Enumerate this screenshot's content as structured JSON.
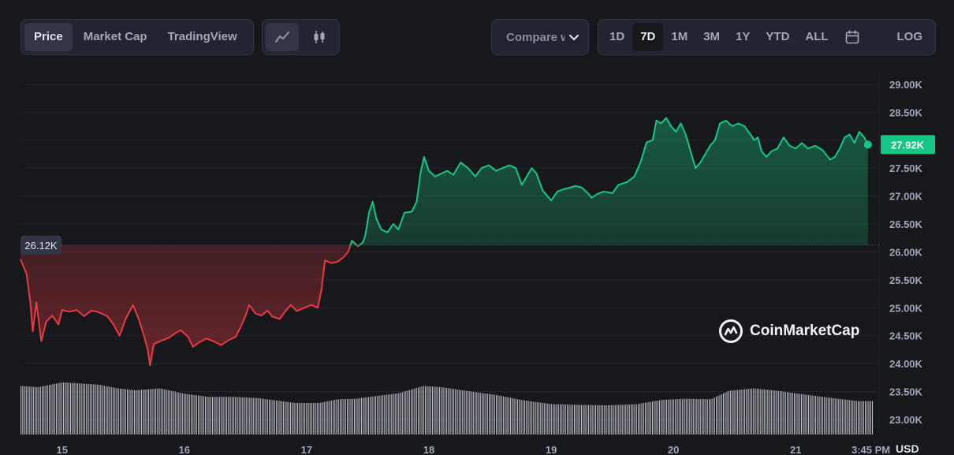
{
  "tabs": [
    "Price",
    "Market Cap",
    "TradingView"
  ],
  "active_tab": "Price",
  "chart_types": [
    "line-chart-icon",
    "candlestick-icon"
  ],
  "compare_label": "Compare with",
  "ranges": [
    "1D",
    "7D",
    "1M",
    "3M",
    "1Y",
    "YTD",
    "ALL"
  ],
  "active_range": "7D",
  "log_label": "LOG",
  "watermark": "CoinMarketCap",
  "colors": {
    "up": "#16c784",
    "down": "#ea3943",
    "bg": "#17181b",
    "grid": "#222531",
    "text": "#a1a7bb"
  },
  "chart_data": {
    "type": "area",
    "title": "",
    "currency": "USD",
    "baseline": 26120,
    "baseline_label": "26.12K",
    "current": 27920,
    "current_label": "27.92K",
    "ylim": [
      22760,
      29210
    ],
    "y_ticks": [
      29000,
      28500,
      28000,
      27500,
      27000,
      26500,
      26000,
      25500,
      25000,
      24500,
      24000,
      23500,
      23000
    ],
    "y_tick_labels": [
      "29.00K",
      "28.50K",
      "28.00K",
      "27.50K",
      "27.00K",
      "26.50K",
      "26.00K",
      "25.50K",
      "25.00K",
      "24.50K",
      "24.00K",
      "23.50K",
      "23.00K"
    ],
    "x_ticks": [
      15,
      16,
      17,
      18,
      19,
      20,
      21
    ],
    "x_tick_labels": [
      "15",
      "16",
      "17",
      "18",
      "19",
      "20",
      "21"
    ],
    "x_end_label": "3:45 PM",
    "xlim": [
      14.66,
      21.63
    ],
    "points": [
      [
        14.66,
        25.87
      ],
      [
        14.71,
        25.6
      ],
      [
        14.74,
        25.1
      ],
      [
        14.76,
        24.58
      ],
      [
        14.79,
        25.1
      ],
      [
        14.83,
        24.4
      ],
      [
        14.87,
        24.75
      ],
      [
        14.92,
        24.86
      ],
      [
        14.97,
        24.7
      ],
      [
        15.0,
        24.96
      ],
      [
        15.06,
        24.93
      ],
      [
        15.12,
        24.96
      ],
      [
        15.18,
        24.85
      ],
      [
        15.24,
        24.95
      ],
      [
        15.3,
        24.92
      ],
      [
        15.37,
        24.85
      ],
      [
        15.42,
        24.7
      ],
      [
        15.47,
        24.5
      ],
      [
        15.52,
        24.8
      ],
      [
        15.58,
        25.05
      ],
      [
        15.63,
        24.78
      ],
      [
        15.67,
        24.5
      ],
      [
        15.7,
        24.25
      ],
      [
        15.72,
        23.97
      ],
      [
        15.75,
        24.35
      ],
      [
        15.8,
        24.4
      ],
      [
        15.87,
        24.46
      ],
      [
        15.93,
        24.55
      ],
      [
        15.97,
        24.6
      ],
      [
        16.03,
        24.48
      ],
      [
        16.07,
        24.3
      ],
      [
        16.12,
        24.38
      ],
      [
        16.18,
        24.45
      ],
      [
        16.24,
        24.4
      ],
      [
        16.3,
        24.33
      ],
      [
        16.36,
        24.42
      ],
      [
        16.42,
        24.48
      ],
      [
        16.47,
        24.7
      ],
      [
        16.5,
        24.85
      ],
      [
        16.53,
        25.05
      ],
      [
        16.58,
        24.9
      ],
      [
        16.63,
        24.86
      ],
      [
        16.68,
        24.95
      ],
      [
        16.72,
        24.84
      ],
      [
        16.78,
        24.8
      ],
      [
        16.83,
        24.95
      ],
      [
        16.87,
        25.05
      ],
      [
        16.92,
        24.94
      ],
      [
        16.98,
        25.0
      ],
      [
        17.04,
        25.05
      ],
      [
        17.09,
        25.0
      ],
      [
        17.12,
        25.3
      ],
      [
        17.15,
        25.85
      ],
      [
        17.2,
        25.8
      ],
      [
        17.25,
        25.82
      ],
      [
        17.3,
        25.9
      ],
      [
        17.34,
        26.0
      ],
      [
        17.37,
        26.2
      ],
      [
        17.42,
        26.1
      ],
      [
        17.46,
        26.17
      ],
      [
        17.48,
        26.3
      ],
      [
        17.51,
        26.7
      ],
      [
        17.54,
        26.9
      ],
      [
        17.57,
        26.6
      ],
      [
        17.61,
        26.4
      ],
      [
        17.66,
        26.35
      ],
      [
        17.71,
        26.5
      ],
      [
        17.75,
        26.4
      ],
      [
        17.8,
        26.7
      ],
      [
        17.86,
        26.72
      ],
      [
        17.9,
        26.9
      ],
      [
        17.93,
        27.4
      ],
      [
        17.96,
        27.7
      ],
      [
        18.0,
        27.45
      ],
      [
        18.05,
        27.35
      ],
      [
        18.1,
        27.4
      ],
      [
        18.15,
        27.45
      ],
      [
        18.2,
        27.38
      ],
      [
        18.26,
        27.6
      ],
      [
        18.32,
        27.5
      ],
      [
        18.38,
        27.35
      ],
      [
        18.43,
        27.5
      ],
      [
        18.49,
        27.55
      ],
      [
        18.55,
        27.45
      ],
      [
        18.6,
        27.5
      ],
      [
        18.66,
        27.55
      ],
      [
        18.71,
        27.5
      ],
      [
        18.76,
        27.2
      ],
      [
        18.8,
        27.35
      ],
      [
        18.84,
        27.5
      ],
      [
        18.88,
        27.4
      ],
      [
        18.93,
        27.1
      ],
      [
        19.0,
        26.92
      ],
      [
        19.05,
        27.08
      ],
      [
        19.1,
        27.12
      ],
      [
        19.15,
        27.15
      ],
      [
        19.2,
        27.18
      ],
      [
        19.25,
        27.15
      ],
      [
        19.3,
        27.05
      ],
      [
        19.33,
        26.97
      ],
      [
        19.38,
        27.04
      ],
      [
        19.43,
        27.08
      ],
      [
        19.5,
        27.05
      ],
      [
        19.55,
        27.2
      ],
      [
        19.62,
        27.25
      ],
      [
        19.68,
        27.35
      ],
      [
        19.71,
        27.5
      ],
      [
        19.73,
        27.6
      ],
      [
        19.78,
        27.96
      ],
      [
        19.83,
        28.0
      ],
      [
        19.86,
        28.35
      ],
      [
        19.9,
        28.3
      ],
      [
        19.94,
        28.4
      ],
      [
        19.98,
        28.25
      ],
      [
        20.02,
        28.15
      ],
      [
        20.06,
        28.3
      ],
      [
        20.1,
        28.1
      ],
      [
        20.14,
        27.8
      ],
      [
        20.18,
        27.5
      ],
      [
        20.22,
        27.6
      ],
      [
        20.26,
        27.75
      ],
      [
        20.3,
        27.9
      ],
      [
        20.34,
        28.0
      ],
      [
        20.38,
        28.3
      ],
      [
        20.43,
        28.35
      ],
      [
        20.48,
        28.25
      ],
      [
        20.53,
        28.3
      ],
      [
        20.58,
        28.25
      ],
      [
        20.63,
        28.1
      ],
      [
        20.66,
        28.0
      ],
      [
        20.69,
        28.05
      ],
      [
        20.72,
        27.8
      ],
      [
        20.76,
        27.7
      ],
      [
        20.8,
        27.8
      ],
      [
        20.85,
        27.85
      ],
      [
        20.9,
        28.05
      ],
      [
        20.95,
        27.9
      ],
      [
        21.0,
        27.85
      ],
      [
        21.05,
        27.95
      ],
      [
        21.1,
        27.85
      ],
      [
        21.16,
        27.9
      ],
      [
        21.22,
        27.82
      ],
      [
        21.28,
        27.65
      ],
      [
        21.32,
        27.7
      ],
      [
        21.36,
        27.85
      ],
      [
        21.4,
        28.05
      ],
      [
        21.44,
        28.1
      ],
      [
        21.48,
        27.95
      ],
      [
        21.52,
        28.15
      ],
      [
        21.56,
        28.05
      ],
      [
        21.59,
        27.92
      ]
    ],
    "volume_profile": [
      [
        14.66,
        0.8
      ],
      [
        14.8,
        0.78
      ],
      [
        15.0,
        0.86
      ],
      [
        15.15,
        0.84
      ],
      [
        15.3,
        0.82
      ],
      [
        15.45,
        0.76
      ],
      [
        15.6,
        0.73
      ],
      [
        15.8,
        0.76
      ],
      [
        16.0,
        0.67
      ],
      [
        16.2,
        0.62
      ],
      [
        16.4,
        0.62
      ],
      [
        16.6,
        0.6
      ],
      [
        16.75,
        0.56
      ],
      [
        16.9,
        0.52
      ],
      [
        17.1,
        0.52
      ],
      [
        17.25,
        0.58
      ],
      [
        17.4,
        0.59
      ],
      [
        17.55,
        0.63
      ],
      [
        17.75,
        0.68
      ],
      [
        17.95,
        0.8
      ],
      [
        18.1,
        0.78
      ],
      [
        18.3,
        0.72
      ],
      [
        18.55,
        0.65
      ],
      [
        18.75,
        0.57
      ],
      [
        19.0,
        0.5
      ],
      [
        19.2,
        0.49
      ],
      [
        19.45,
        0.48
      ],
      [
        19.7,
        0.5
      ],
      [
        19.9,
        0.57
      ],
      [
        20.1,
        0.59
      ],
      [
        20.3,
        0.58
      ],
      [
        20.45,
        0.72
      ],
      [
        20.65,
        0.76
      ],
      [
        20.85,
        0.72
      ],
      [
        21.1,
        0.65
      ],
      [
        21.3,
        0.6
      ],
      [
        21.5,
        0.55
      ],
      [
        21.59,
        0.55
      ]
    ]
  }
}
